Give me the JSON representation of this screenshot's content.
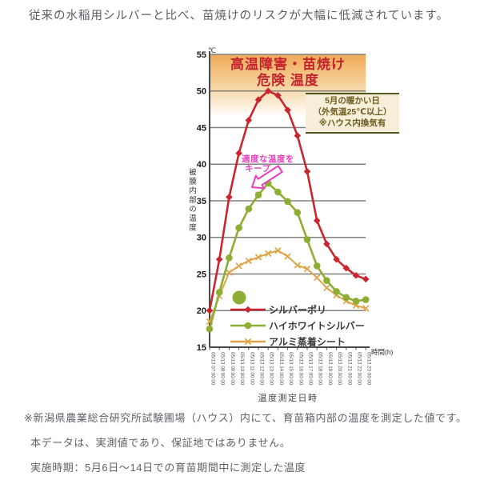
{
  "page": {
    "background": "#ffffff",
    "top_note": "従来の水稲用シルバーと比べ、苗焼けのリスクが大幅に低減されています。",
    "footnotes": [
      "※新潟県農業総合研究所試験圃場（ハウス）内にて、育苗箱内部の温度を測定した値です。",
      "本データは、実測値であり、保証地ではありません。",
      "実施時期：5月6日～14日での育苗期間中に測定した温度"
    ]
  },
  "chart_data": {
    "type": "line",
    "x_labels": [
      "05/13 07:00:00",
      "05/13 08:00:00",
      "05/13 09:00:00",
      "05/13 10:00:00",
      "05/13 11:00:00",
      "05/13 12:00:00",
      "05/13 13:00:00",
      "05/13 14:00:00",
      "05/13 15:00:00",
      "05/13 16:00:00",
      "05/13 17:00:00",
      "05/13 18:00:00",
      "05/13 19:00:00",
      "05/13 20:00:00",
      "05/13 21:00:00",
      "05/13 22:00:00",
      "05/13 23:00:00"
    ],
    "x_axis_label": "時間(h)",
    "x_axis_sublabel": "温度測定日時",
    "y_axis_label": "被膜内部の温度",
    "y_unit": "℃",
    "ylim": [
      15,
      55
    ],
    "ytick_step": 5,
    "grid": true,
    "legend_position": "inside-bottom-left",
    "series": [
      {
        "name": "シルバーポリ",
        "marker": "diamond",
        "color": "#c9262f",
        "values": [
          20,
          27,
          35.5,
          41.5,
          46,
          48.8,
          50,
          49.4,
          47.4,
          43.9,
          39,
          32.3,
          29.1,
          27,
          25.8,
          24.8,
          24.3
        ]
      },
      {
        "name": "ハイホワイトシルバー",
        "marker": "circle",
        "color": "#8dad33",
        "values": [
          17.5,
          22.5,
          27.2,
          31.3,
          33.9,
          35.8,
          37.4,
          36.2,
          34.9,
          33.4,
          29.7,
          26.1,
          24.1,
          22.6,
          21.8,
          21.3,
          21.5
        ]
      },
      {
        "name": "アルミ蒸着シート",
        "marker": "x",
        "color": "#dda449",
        "values": [
          18.5,
          22,
          25.2,
          26.1,
          26.8,
          27.3,
          27.8,
          28.2,
          27.4,
          26.2,
          25.7,
          24.5,
          23.1,
          22.1,
          21.3,
          20.7,
          20.3
        ]
      }
    ],
    "danger_zone": {
      "from": 50,
      "to": 55,
      "band_color": "#f0aa57",
      "label_line1": "高温障害・苗焼け",
      "label_line2": "危険 温度",
      "label_color": "#c3232e"
    },
    "condition_note": {
      "lines": [
        "5月の暖かい日",
        "（外気温25℃以上）",
        "※ハウス内換気有"
      ],
      "text_color": "#6d5c1e",
      "border_color": "#4c5a20",
      "bg_color": "#f7efd9"
    },
    "annotation": {
      "lines": [
        "適度な温度を",
        "キープ"
      ],
      "color": "#e83fc0"
    }
  }
}
